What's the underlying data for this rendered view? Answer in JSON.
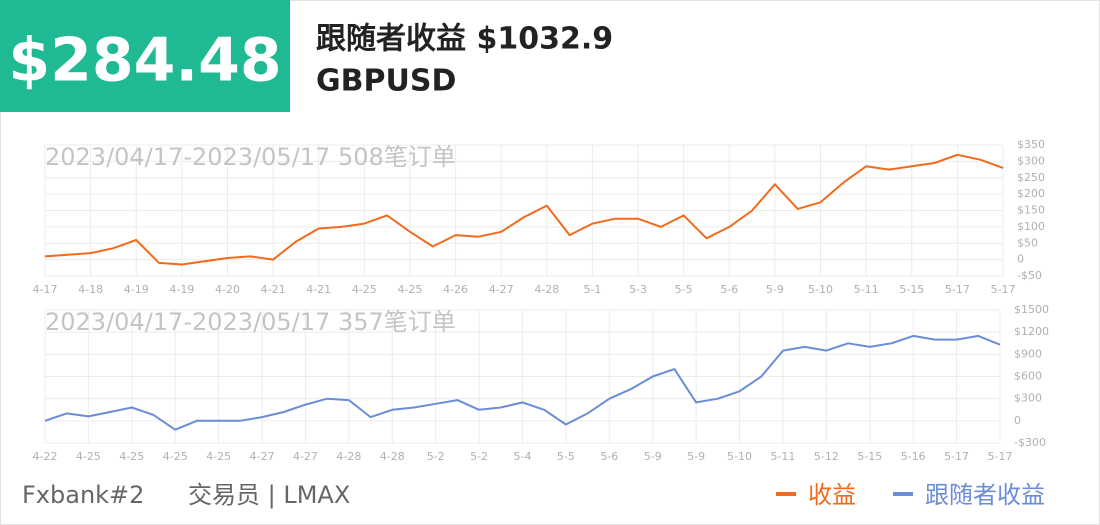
{
  "header": {
    "amount": "$284.48",
    "title": "跟随者收益 $1032.9",
    "symbol": "GBPUSD"
  },
  "footer": {
    "account": "Fxbank#2",
    "trader": "交易员 | LMAX"
  },
  "chart_data": [
    {
      "type": "line",
      "subtitle": "2023/04/17-2023/05/17 508笔订单",
      "grid": true,
      "x": [
        0,
        0.5,
        1,
        1.5,
        2,
        2.5,
        3,
        3.5,
        4,
        4.5,
        5,
        5.5,
        6,
        6.5,
        7,
        7.5,
        8,
        8.5,
        9,
        9.5,
        10,
        10.5,
        11,
        11.5,
        12,
        12.5,
        13,
        13.5,
        14,
        14.5,
        15,
        15.5,
        16,
        16.5,
        17,
        17.5,
        18,
        18.5,
        19,
        19.5,
        20,
        20.5,
        21
      ],
      "xlim": [
        0,
        21
      ],
      "xticks": [
        {
          "value": 0,
          "label": "4-17"
        },
        {
          "value": 1,
          "label": "4-18"
        },
        {
          "value": 2,
          "label": "4-19"
        },
        {
          "value": 3,
          "label": "4-19"
        },
        {
          "value": 4,
          "label": "4-20"
        },
        {
          "value": 5,
          "label": "4-21"
        },
        {
          "value": 6,
          "label": "4-21"
        },
        {
          "value": 7,
          "label": "4-25"
        },
        {
          "value": 8,
          "label": "4-25"
        },
        {
          "value": 9,
          "label": "4-26"
        },
        {
          "value": 10,
          "label": "4-27"
        },
        {
          "value": 11,
          "label": "4-28"
        },
        {
          "value": 12,
          "label": "5-1"
        },
        {
          "value": 13,
          "label": "5-3"
        },
        {
          "value": 14,
          "label": "5-5"
        },
        {
          "value": 15,
          "label": "5-6"
        },
        {
          "value": 16,
          "label": "5-9"
        },
        {
          "value": 17,
          "label": "5-10"
        },
        {
          "value": 18,
          "label": "5-11"
        },
        {
          "value": 19,
          "label": "5-15"
        },
        {
          "value": 20,
          "label": "5-17"
        },
        {
          "value": 21,
          "label": "5-17"
        }
      ],
      "ylim": [
        -50,
        350
      ],
      "yticks": [
        {
          "value": -50,
          "label": "-$50"
        },
        0,
        {
          "value": 50,
          "label": "$50"
        },
        {
          "value": 100,
          "label": "$100"
        },
        {
          "value": 150,
          "label": "$150"
        },
        {
          "value": 200,
          "label": "$200"
        },
        {
          "value": 250,
          "label": "$250"
        },
        {
          "value": 300,
          "label": "$300"
        },
        {
          "value": 350,
          "label": "$350"
        }
      ],
      "series": [
        {
          "name": "收益",
          "color": "#f26a1b",
          "values": [
            10,
            15,
            20,
            35,
            60,
            -10,
            -15,
            -5,
            5,
            10,
            0,
            55,
            95,
            100,
            110,
            135,
            85,
            40,
            75,
            70,
            85,
            130,
            165,
            75,
            110,
            125,
            125,
            100,
            135,
            65,
            100,
            150,
            230,
            155,
            175,
            235,
            285,
            275,
            285,
            295,
            320,
            305,
            280
          ]
        }
      ]
    },
    {
      "type": "line",
      "subtitle": "2023/04/17-2023/05/17 357笔订单",
      "grid": true,
      "x": [
        0,
        0.5,
        1,
        1.5,
        2,
        2.5,
        3,
        3.5,
        4,
        4.5,
        5,
        5.5,
        6,
        6.5,
        7,
        7.5,
        8,
        8.5,
        9,
        9.5,
        10,
        10.5,
        11,
        11.5,
        12,
        12.5,
        13,
        13.5,
        14,
        14.5,
        15,
        15.5,
        16,
        16.5,
        17,
        17.5,
        18,
        18.5,
        19,
        19.5,
        20,
        20.5,
        21,
        21.5,
        22
      ],
      "xlim": [
        0,
        22
      ],
      "xticks": [
        {
          "value": 0,
          "label": "4-22"
        },
        {
          "value": 1,
          "label": "4-25"
        },
        {
          "value": 2,
          "label": "4-25"
        },
        {
          "value": 3,
          "label": "4-25"
        },
        {
          "value": 4,
          "label": "4-25"
        },
        {
          "value": 5,
          "label": "4-27"
        },
        {
          "value": 6,
          "label": "4-27"
        },
        {
          "value": 7,
          "label": "4-28"
        },
        {
          "value": 8,
          "label": "4-28"
        },
        {
          "value": 9,
          "label": "5-2"
        },
        {
          "value": 10,
          "label": "5-2"
        },
        {
          "value": 11,
          "label": "5-4"
        },
        {
          "value": 12,
          "label": "5-5"
        },
        {
          "value": 13,
          "label": "5-6"
        },
        {
          "value": 14,
          "label": "5-9"
        },
        {
          "value": 15,
          "label": "5-9"
        },
        {
          "value": 16,
          "label": "5-10"
        },
        {
          "value": 17,
          "label": "5-11"
        },
        {
          "value": 18,
          "label": "5-12"
        },
        {
          "value": 19,
          "label": "5-15"
        },
        {
          "value": 20,
          "label": "5-16"
        },
        {
          "value": 21,
          "label": "5-17"
        },
        {
          "value": 22,
          "label": "5-17"
        }
      ],
      "ylim": [
        -300,
        1500
      ],
      "yticks": [
        {
          "value": -300,
          "label": "-$300"
        },
        0,
        {
          "value": 300,
          "label": "$300"
        },
        {
          "value": 600,
          "label": "$600"
        },
        {
          "value": 900,
          "label": "$900"
        },
        {
          "value": 1200,
          "label": "$1200"
        },
        {
          "value": 1500,
          "label": "$1500"
        }
      ],
      "series": [
        {
          "name": "跟随者收益",
          "color": "#6b8cd6",
          "values": [
            0,
            100,
            60,
            120,
            180,
            80,
            -120,
            0,
            0,
            0,
            50,
            120,
            220,
            300,
            280,
            50,
            150,
            180,
            230,
            280,
            150,
            180,
            250,
            150,
            -50,
            100,
            300,
            430,
            600,
            700,
            250,
            300,
            400,
            600,
            950,
            1000,
            950,
            1050,
            1000,
            1050,
            1150,
            1100,
            1100,
            1150,
            1030
          ]
        }
      ]
    }
  ]
}
